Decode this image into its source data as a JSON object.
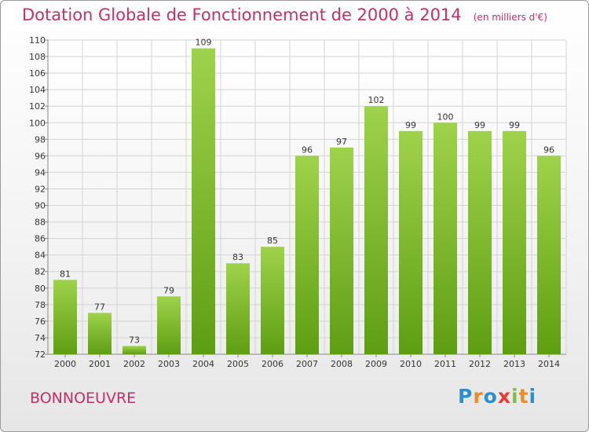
{
  "page": {
    "title": "Dotation Globale de Fonctionnement de 2000 à 2014",
    "subtitle": "(en milliers d'€)",
    "commune": "BONNOEUVRE",
    "logo": {
      "text": "Proxiti",
      "letters": [
        {
          "ch": "P",
          "color": "#2a8fd0"
        },
        {
          "ch": "r",
          "color": "#f08a24"
        },
        {
          "ch": "o",
          "color": "#2a8fd0"
        },
        {
          "ch": "x",
          "color": "#e63b2e"
        },
        {
          "ch": "i",
          "color": "#7cc242"
        },
        {
          "ch": "t",
          "color": "#f08a24"
        },
        {
          "ch": "i",
          "color": "#2a8fd0"
        }
      ]
    },
    "colors": {
      "accent": "#c0306a",
      "bar_light": "#9fd24b",
      "bar_dark": "#5e9e12"
    }
  },
  "chart_data": {
    "type": "bar",
    "categories": [
      "2000",
      "2001",
      "2002",
      "2003",
      "2004",
      "2005",
      "2006",
      "2007",
      "2008",
      "2009",
      "2010",
      "2011",
      "2012",
      "2013",
      "2014"
    ],
    "values": [
      81,
      77,
      73,
      79,
      109,
      83,
      85,
      96,
      97,
      102,
      99,
      100,
      99,
      99,
      96
    ],
    "ylim": [
      72,
      110
    ],
    "yticks": [
      72,
      74,
      76,
      78,
      80,
      82,
      84,
      86,
      88,
      90,
      92,
      94,
      96,
      98,
      100,
      102,
      104,
      106,
      108,
      110
    ],
    "grid": true,
    "title": "Dotation Globale de Fonctionnement de 2000 à 2014",
    "xlabel": "",
    "ylabel": ""
  }
}
